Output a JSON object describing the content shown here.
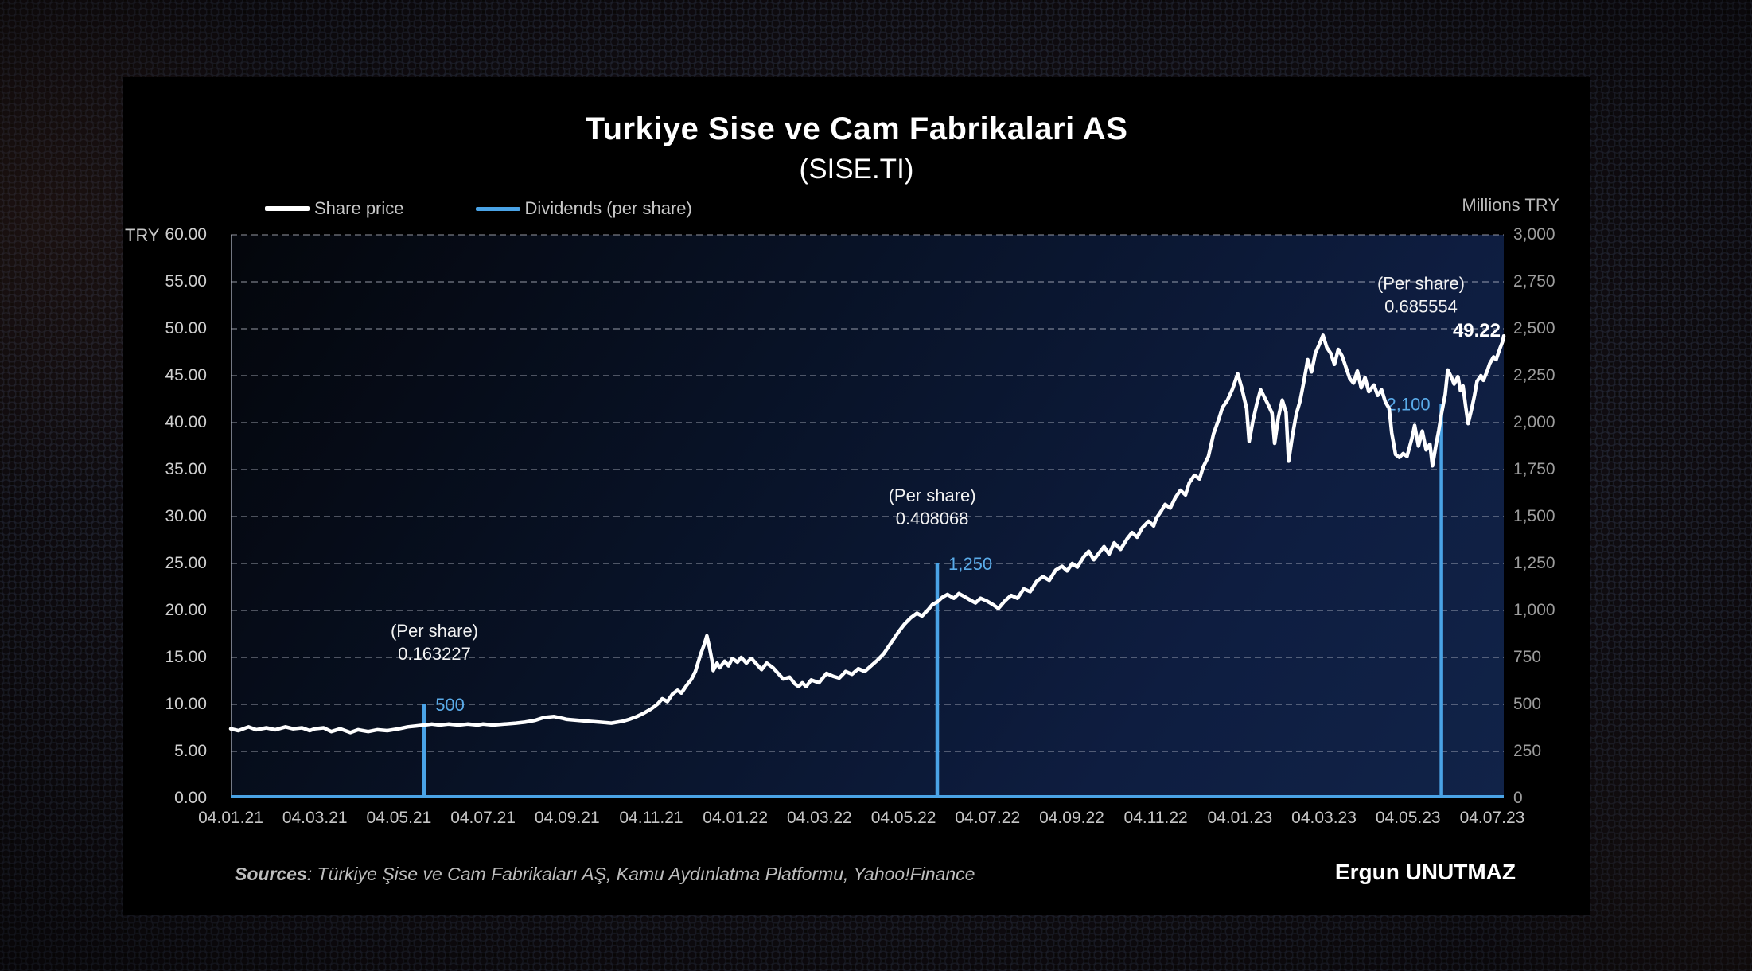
{
  "title": "Turkiye Sise ve Cam Fabrikalari AS",
  "subtitle": "(SISE.TI)",
  "legend": [
    {
      "label": "Share price",
      "color": "#ffffff"
    },
    {
      "label": "Dividends (per share)",
      "color": "#4aa3e6"
    }
  ],
  "left_axis": {
    "header": "TRY",
    "ticks": [
      "60.00",
      "55.00",
      "50.00",
      "45.00",
      "40.00",
      "35.00",
      "30.00",
      "25.00",
      "20.00",
      "15.00",
      "10.00",
      "5.00",
      "0.00"
    ]
  },
  "right_axis": {
    "header": "Millions TRY",
    "ticks": [
      "3,000",
      "2,750",
      "2,500",
      "2,250",
      "2,000",
      "1,750",
      "1,500",
      "1,250",
      "1,000",
      "750",
      "500",
      "250",
      "0"
    ]
  },
  "x_axis": {
    "ticks": [
      "04.01.21",
      "04.03.21",
      "04.05.21",
      "04.07.21",
      "04.09.21",
      "04.11.21",
      "04.01.22",
      "04.03.22",
      "04.05.22",
      "04.07.22",
      "04.09.22",
      "04.11.22",
      "04.01.23",
      "04.03.23",
      "04.05.23",
      "04.07.23"
    ]
  },
  "footer": {
    "sources_label": "Sources",
    "sources_text": ": Türkiye Şise ve Cam Fabrikaları AŞ, Kamu Aydınlatma Platformu, Yahoo!Finance",
    "author": "Ergun UNUTMAZ"
  },
  "chart_data": {
    "type": "line",
    "title": "Turkiye Sise ve Cam Fabrikalari AS (SISE.TI)",
    "x_range": [
      "04.01.21",
      "04.07.23"
    ],
    "ylim_left_try": [
      0,
      60
    ],
    "ylim_right_millions_try": [
      0,
      3000
    ],
    "grid": "dashed horizontal",
    "legend_position": "top-left",
    "last_price_label": "49.22",
    "colors": {
      "price": "#ffffff",
      "dividends": "#4aa3e6",
      "plot_bg_top": "#04060b",
      "plot_bg_bottom": "#112348"
    },
    "series": [
      {
        "name": "Share price",
        "axis": "left",
        "color": "#ffffff",
        "unit": "TRY",
        "points": [
          [
            0,
            7.4
          ],
          [
            0.006,
            7.2
          ],
          [
            0.014,
            7.6
          ],
          [
            0.02,
            7.3
          ],
          [
            0.028,
            7.5
          ],
          [
            0.035,
            7.3
          ],
          [
            0.043,
            7.6
          ],
          [
            0.049,
            7.4
          ],
          [
            0.056,
            7.5
          ],
          [
            0.062,
            7.2
          ],
          [
            0.066,
            7.4
          ],
          [
            0.073,
            7.5
          ],
          [
            0.079,
            7.1
          ],
          [
            0.086,
            7.4
          ],
          [
            0.094,
            7.0
          ],
          [
            0.1,
            7.3
          ],
          [
            0.108,
            7.1
          ],
          [
            0.115,
            7.3
          ],
          [
            0.123,
            7.2
          ],
          [
            0.132,
            7.4
          ],
          [
            0.139,
            7.6
          ],
          [
            0.146,
            7.7
          ],
          [
            0.152,
            7.8
          ],
          [
            0.158,
            7.9
          ],
          [
            0.164,
            7.8
          ],
          [
            0.171,
            7.9
          ],
          [
            0.179,
            7.8
          ],
          [
            0.186,
            7.9
          ],
          [
            0.194,
            7.8
          ],
          [
            0.198,
            7.9
          ],
          [
            0.206,
            7.8
          ],
          [
            0.215,
            7.9
          ],
          [
            0.224,
            8.0
          ],
          [
            0.231,
            8.1
          ],
          [
            0.239,
            8.3
          ],
          [
            0.246,
            8.6
          ],
          [
            0.254,
            8.7
          ],
          [
            0.261,
            8.5
          ],
          [
            0.264,
            8.4
          ],
          [
            0.273,
            8.3
          ],
          [
            0.281,
            8.2
          ],
          [
            0.29,
            8.1
          ],
          [
            0.299,
            8.0
          ],
          [
            0.308,
            8.2
          ],
          [
            0.313,
            8.4
          ],
          [
            0.319,
            8.7
          ],
          [
            0.325,
            9.1
          ],
          [
            0.33,
            9.5
          ],
          [
            0.335,
            10.0
          ],
          [
            0.339,
            10.6
          ],
          [
            0.343,
            10.3
          ],
          [
            0.347,
            11.1
          ],
          [
            0.351,
            11.5
          ],
          [
            0.354,
            11.2
          ],
          [
            0.358,
            12.0
          ],
          [
            0.362,
            12.7
          ],
          [
            0.365,
            13.5
          ],
          [
            0.367,
            14.4
          ],
          [
            0.369,
            15.3
          ],
          [
            0.372,
            16.4
          ],
          [
            0.374,
            17.3
          ],
          [
            0.376,
            16.1
          ],
          [
            0.378,
            14.7
          ],
          [
            0.379,
            13.6
          ],
          [
            0.382,
            14.4
          ],
          [
            0.384,
            13.9
          ],
          [
            0.388,
            14.6
          ],
          [
            0.391,
            14.1
          ],
          [
            0.394,
            14.9
          ],
          [
            0.398,
            14.5
          ],
          [
            0.401,
            15.0
          ],
          [
            0.405,
            14.4
          ],
          [
            0.409,
            14.9
          ],
          [
            0.413,
            14.3
          ],
          [
            0.417,
            13.7
          ],
          [
            0.421,
            14.4
          ],
          [
            0.426,
            13.9
          ],
          [
            0.43,
            13.3
          ],
          [
            0.434,
            12.7
          ],
          [
            0.439,
            12.9
          ],
          [
            0.443,
            12.2
          ],
          [
            0.446,
            11.9
          ],
          [
            0.449,
            12.3
          ],
          [
            0.452,
            11.9
          ],
          [
            0.456,
            12.6
          ],
          [
            0.462,
            12.3
          ],
          [
            0.468,
            13.3
          ],
          [
            0.473,
            13.0
          ],
          [
            0.478,
            12.8
          ],
          [
            0.483,
            13.5
          ],
          [
            0.488,
            13.2
          ],
          [
            0.493,
            13.8
          ],
          [
            0.498,
            13.5
          ],
          [
            0.503,
            14.1
          ],
          [
            0.508,
            14.7
          ],
          [
            0.513,
            15.4
          ],
          [
            0.517,
            16.2
          ],
          [
            0.521,
            17.0
          ],
          [
            0.525,
            17.8
          ],
          [
            0.529,
            18.5
          ],
          [
            0.534,
            19.2
          ],
          [
            0.539,
            19.7
          ],
          [
            0.543,
            19.4
          ],
          [
            0.548,
            20.1
          ],
          [
            0.551,
            20.6
          ],
          [
            0.555,
            20.9
          ],
          [
            0.559,
            21.4
          ],
          [
            0.563,
            21.7
          ],
          [
            0.568,
            21.3
          ],
          [
            0.572,
            21.8
          ],
          [
            0.576,
            21.5
          ],
          [
            0.581,
            21.1
          ],
          [
            0.585,
            20.8
          ],
          [
            0.589,
            21.3
          ],
          [
            0.594,
            21.0
          ],
          [
            0.599,
            20.6
          ],
          [
            0.603,
            20.2
          ],
          [
            0.608,
            21.0
          ],
          [
            0.613,
            21.6
          ],
          [
            0.618,
            21.3
          ],
          [
            0.623,
            22.3
          ],
          [
            0.628,
            22.0
          ],
          [
            0.633,
            23.1
          ],
          [
            0.638,
            23.6
          ],
          [
            0.643,
            23.2
          ],
          [
            0.648,
            24.3
          ],
          [
            0.653,
            24.7
          ],
          [
            0.657,
            24.2
          ],
          [
            0.661,
            25.0
          ],
          [
            0.665,
            24.6
          ],
          [
            0.67,
            25.7
          ],
          [
            0.674,
            26.3
          ],
          [
            0.678,
            25.4
          ],
          [
            0.682,
            26.1
          ],
          [
            0.686,
            26.8
          ],
          [
            0.69,
            26.0
          ],
          [
            0.694,
            27.2
          ],
          [
            0.699,
            26.5
          ],
          [
            0.704,
            27.6
          ],
          [
            0.708,
            28.3
          ],
          [
            0.712,
            27.8
          ],
          [
            0.716,
            28.8
          ],
          [
            0.721,
            29.5
          ],
          [
            0.725,
            29.0
          ],
          [
            0.727,
            29.8
          ],
          [
            0.731,
            30.6
          ],
          [
            0.734,
            31.3
          ],
          [
            0.738,
            30.9
          ],
          [
            0.742,
            32.0
          ],
          [
            0.746,
            32.8
          ],
          [
            0.75,
            32.3
          ],
          [
            0.753,
            33.6
          ],
          [
            0.757,
            34.4
          ],
          [
            0.761,
            34.0
          ],
          [
            0.764,
            35.3
          ],
          [
            0.768,
            36.4
          ],
          [
            0.772,
            38.8
          ],
          [
            0.776,
            40.3
          ],
          [
            0.779,
            41.6
          ],
          [
            0.783,
            42.4
          ],
          [
            0.787,
            43.6
          ],
          [
            0.791,
            45.2
          ],
          [
            0.794,
            43.8
          ],
          [
            0.798,
            41.5
          ],
          [
            0.8,
            38.0
          ],
          [
            0.803,
            40.2
          ],
          [
            0.806,
            42.0
          ],
          [
            0.809,
            43.5
          ],
          [
            0.812,
            42.7
          ],
          [
            0.815,
            41.9
          ],
          [
            0.818,
            41.0
          ],
          [
            0.82,
            37.8
          ],
          [
            0.823,
            40.6
          ],
          [
            0.826,
            42.4
          ],
          [
            0.829,
            41.1
          ],
          [
            0.831,
            35.9
          ],
          [
            0.834,
            38.6
          ],
          [
            0.837,
            40.9
          ],
          [
            0.84,
            42.3
          ],
          [
            0.843,
            44.4
          ],
          [
            0.846,
            46.7
          ],
          [
            0.849,
            45.4
          ],
          [
            0.852,
            47.4
          ],
          [
            0.855,
            48.3
          ],
          [
            0.858,
            49.3
          ],
          [
            0.861,
            48.0
          ],
          [
            0.864,
            47.4
          ],
          [
            0.867,
            46.2
          ],
          [
            0.87,
            47.8
          ],
          [
            0.873,
            47.1
          ],
          [
            0.876,
            45.9
          ],
          [
            0.879,
            44.7
          ],
          [
            0.882,
            44.2
          ],
          [
            0.885,
            45.5
          ],
          [
            0.888,
            43.7
          ],
          [
            0.891,
            44.8
          ],
          [
            0.894,
            43.3
          ],
          [
            0.898,
            44.0
          ],
          [
            0.901,
            42.9
          ],
          [
            0.904,
            43.5
          ],
          [
            0.907,
            42.2
          ],
          [
            0.91,
            41.5
          ],
          [
            0.912,
            38.9
          ],
          [
            0.915,
            36.6
          ],
          [
            0.918,
            36.3
          ],
          [
            0.921,
            36.7
          ],
          [
            0.924,
            36.4
          ],
          [
            0.928,
            38.4
          ],
          [
            0.93,
            39.7
          ],
          [
            0.933,
            37.5
          ],
          [
            0.936,
            39.1
          ],
          [
            0.939,
            37.1
          ],
          [
            0.942,
            37.7
          ],
          [
            0.944,
            35.4
          ],
          [
            0.947,
            37.8
          ],
          [
            0.949,
            39.2
          ],
          [
            0.951,
            40.9
          ],
          [
            0.954,
            43.0
          ],
          [
            0.956,
            45.6
          ],
          [
            0.959,
            44.8
          ],
          [
            0.961,
            44.1
          ],
          [
            0.964,
            44.9
          ],
          [
            0.966,
            43.4
          ],
          [
            0.968,
            43.9
          ],
          [
            0.97,
            41.8
          ],
          [
            0.972,
            39.9
          ],
          [
            0.975,
            41.6
          ],
          [
            0.977,
            42.9
          ],
          [
            0.979,
            44.4
          ],
          [
            0.982,
            45.0
          ],
          [
            0.984,
            44.5
          ],
          [
            0.987,
            45.5
          ],
          [
            0.989,
            46.3
          ],
          [
            0.992,
            47.0
          ],
          [
            0.994,
            46.7
          ],
          [
            0.997,
            47.9
          ],
          [
            0.999,
            48.6
          ],
          [
            1,
            49.22
          ]
        ]
      },
      {
        "name": "Dividends (per share)",
        "axis": "right",
        "color": "#4aa3e6",
        "unit": "Millions TRY",
        "style": "vertical spikes on zero baseline",
        "events": [
          {
            "x": 0.152,
            "value_millions": 500,
            "value_label": "500",
            "per_share_line1": "(Per share)",
            "per_share_line2": "0.163227",
            "ann_x": 0.16,
            "ann_top_try": 17.2,
            "value_label_side": "right"
          },
          {
            "x": 0.555,
            "value_millions": 1250,
            "value_label": "1,250",
            "per_share_line1": "(Per share)",
            "per_share_line2": "0.408068",
            "ann_x": 0.551,
            "ann_top_try": 31.6,
            "value_label_side": "right"
          },
          {
            "x": 0.951,
            "value_millions": 2100,
            "value_label": "2,100",
            "per_share_line1": "(Per share)",
            "per_share_line2": "0.685554",
            "ann_x": 0.935,
            "ann_top_try": 54.2,
            "value_label_side": "left"
          }
        ]
      }
    ]
  }
}
